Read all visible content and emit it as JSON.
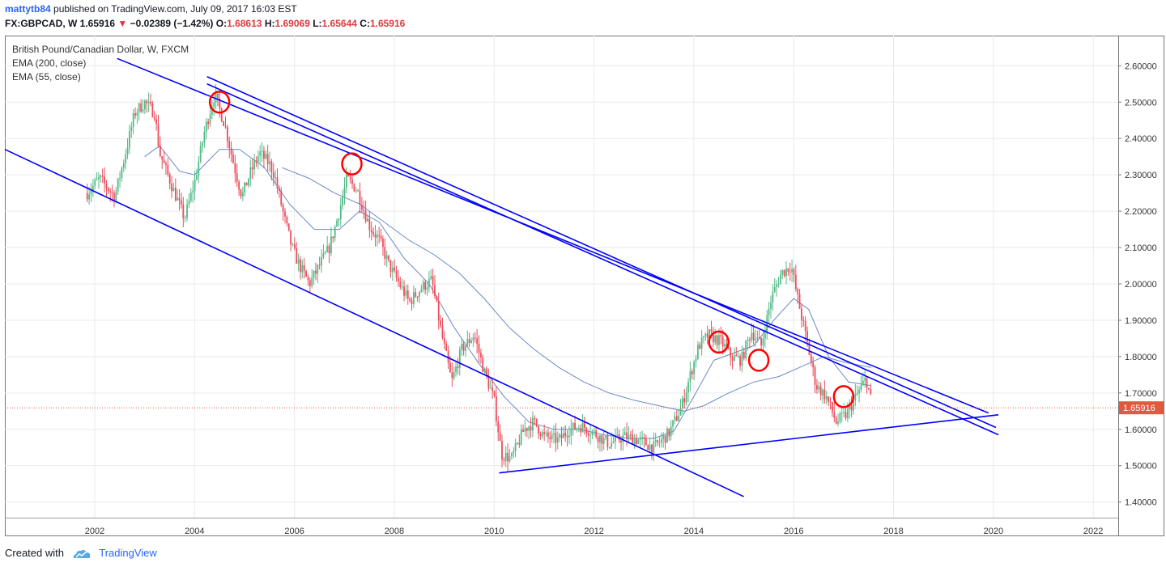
{
  "header": {
    "author": "mattytb84",
    "published_text": "published on TradingView.com, July 09, 2017 16:03 EST",
    "symbol": "FX:GBPCAD, W",
    "last": "1.65916",
    "change": "−0.02389 (−1.42%)",
    "open_label": "O:",
    "open": "1.68613",
    "high_label": "H:",
    "high": "1.69069",
    "low_label": "L:",
    "low": "1.65644",
    "close_label": "C:",
    "close": "1.65916"
  },
  "legend": {
    "title": "British Pound/Canadian Dollar, W, FXCM",
    "ema200": "EMA (200, close)",
    "ema55": "EMA (55, close)"
  },
  "footer": {
    "created_with": "Created with",
    "brand": "TradingView"
  },
  "chart_data": {
    "type": "candlestick",
    "xlim": [
      2000.2,
      2022.5
    ],
    "ylim": [
      1.357,
      2.683
    ],
    "x_ticks": [
      "2002",
      "2004",
      "2006",
      "2008",
      "2010",
      "2012",
      "2014",
      "2016",
      "2018",
      "2020",
      "2022"
    ],
    "y_ticks": [
      "1.40000",
      "1.50000",
      "1.60000",
      "1.70000",
      "1.80000",
      "1.90000",
      "2.00000",
      "2.10000",
      "2.20000",
      "2.30000",
      "2.40000",
      "2.50000",
      "2.60000"
    ],
    "last_price": 1.65916,
    "last_price_label": "1.65916",
    "colors": {
      "up": "#53b987",
      "down": "#eb4d5c",
      "ema": "#6a89c5",
      "trendline": "#0000ff",
      "circle": "#ff0000",
      "last_price": "#e05a3c"
    },
    "price_path": [
      [
        2001.85,
        2.25
      ],
      [
        2002.1,
        2.29
      ],
      [
        2002.4,
        2.24
      ],
      [
        2002.6,
        2.35
      ],
      [
        2002.8,
        2.47
      ],
      [
        2003.0,
        2.5
      ],
      [
        2003.2,
        2.47
      ],
      [
        2003.3,
        2.36
      ],
      [
        2003.6,
        2.25
      ],
      [
        2003.8,
        2.18
      ],
      [
        2004.0,
        2.28
      ],
      [
        2004.2,
        2.42
      ],
      [
        2004.4,
        2.52
      ],
      [
        2004.6,
        2.44
      ],
      [
        2004.8,
        2.32
      ],
      [
        2004.95,
        2.24
      ],
      [
        2005.1,
        2.3
      ],
      [
        2005.3,
        2.36
      ],
      [
        2005.5,
        2.33
      ],
      [
        2005.6,
        2.3
      ],
      [
        2005.8,
        2.18
      ],
      [
        2005.95,
        2.1
      ],
      [
        2006.1,
        2.05
      ],
      [
        2006.3,
        2.0
      ],
      [
        2006.5,
        2.05
      ],
      [
        2006.7,
        2.1
      ],
      [
        2006.9,
        2.2
      ],
      [
        2007.05,
        2.29
      ],
      [
        2007.25,
        2.26
      ],
      [
        2007.5,
        2.16
      ],
      [
        2007.7,
        2.12
      ],
      [
        2007.9,
        2.05
      ],
      [
        2008.1,
        2.0
      ],
      [
        2008.3,
        1.95
      ],
      [
        2008.55,
        1.99
      ],
      [
        2008.75,
        2.01
      ],
      [
        2008.95,
        1.86
      ],
      [
        2009.15,
        1.73
      ],
      [
        2009.35,
        1.82
      ],
      [
        2009.6,
        1.86
      ],
      [
        2009.8,
        1.76
      ],
      [
        2010.0,
        1.68
      ],
      [
        2010.15,
        1.53
      ],
      [
        2010.35,
        1.52
      ],
      [
        2010.6,
        1.6
      ],
      [
        2010.8,
        1.62
      ],
      [
        2011.0,
        1.58
      ],
      [
        2011.3,
        1.57
      ],
      [
        2011.5,
        1.6
      ],
      [
        2011.75,
        1.61
      ],
      [
        2012.0,
        1.59
      ],
      [
        2012.3,
        1.56
      ],
      [
        2012.6,
        1.58
      ],
      [
        2012.9,
        1.57
      ],
      [
        2013.2,
        1.55
      ],
      [
        2013.5,
        1.59
      ],
      [
        2013.75,
        1.66
      ],
      [
        2013.95,
        1.76
      ],
      [
        2014.1,
        1.83
      ],
      [
        2014.3,
        1.86
      ],
      [
        2014.55,
        1.84
      ],
      [
        2014.75,
        1.8
      ],
      [
        2014.95,
        1.79
      ],
      [
        2015.15,
        1.87
      ],
      [
        2015.35,
        1.83
      ],
      [
        2015.55,
        1.96
      ],
      [
        2015.75,
        2.03
      ],
      [
        2015.95,
        2.05
      ],
      [
        2016.05,
        1.98
      ],
      [
        2016.25,
        1.85
      ],
      [
        2016.45,
        1.72
      ],
      [
        2016.65,
        1.69
      ],
      [
        2016.85,
        1.62
      ],
      [
        2017.05,
        1.64
      ],
      [
        2017.25,
        1.69
      ],
      [
        2017.45,
        1.74
      ],
      [
        2017.55,
        1.68
      ]
    ],
    "ema200": [
      [
        2005.75,
        2.32
      ],
      [
        2006.3,
        2.29
      ],
      [
        2006.8,
        2.25
      ],
      [
        2007.3,
        2.22
      ],
      [
        2007.8,
        2.17
      ],
      [
        2008.3,
        2.12
      ],
      [
        2008.8,
        2.08
      ],
      [
        2009.3,
        2.03
      ],
      [
        2009.8,
        1.96
      ],
      [
        2010.3,
        1.88
      ],
      [
        2010.8,
        1.82
      ],
      [
        2011.3,
        1.77
      ],
      [
        2011.8,
        1.73
      ],
      [
        2012.3,
        1.7
      ],
      [
        2012.8,
        1.68
      ],
      [
        2013.3,
        1.665
      ],
      [
        2013.8,
        1.65
      ],
      [
        2014.2,
        1.665
      ],
      [
        2014.7,
        1.7
      ],
      [
        2015.2,
        1.73
      ],
      [
        2015.7,
        1.745
      ],
      [
        2016.2,
        1.775
      ],
      [
        2016.6,
        1.8
      ],
      [
        2017.0,
        1.785
      ],
      [
        2017.55,
        1.77
      ]
    ],
    "ema55": [
      [
        2003.0,
        2.35
      ],
      [
        2003.3,
        2.38
      ],
      [
        2003.7,
        2.31
      ],
      [
        2004.0,
        2.3
      ],
      [
        2004.5,
        2.37
      ],
      [
        2004.9,
        2.37
      ],
      [
        2005.4,
        2.32
      ],
      [
        2005.9,
        2.22
      ],
      [
        2006.4,
        2.15
      ],
      [
        2006.9,
        2.15
      ],
      [
        2007.3,
        2.2
      ],
      [
        2007.7,
        2.17
      ],
      [
        2008.2,
        2.07
      ],
      [
        2008.7,
        2.0
      ],
      [
        2009.2,
        1.88
      ],
      [
        2009.7,
        1.78
      ],
      [
        2010.2,
        1.69
      ],
      [
        2010.7,
        1.62
      ],
      [
        2011.2,
        1.6
      ],
      [
        2011.7,
        1.6
      ],
      [
        2012.2,
        1.585
      ],
      [
        2012.7,
        1.575
      ],
      [
        2013.2,
        1.575
      ],
      [
        2013.6,
        1.595
      ],
      [
        2014.0,
        1.69
      ],
      [
        2014.4,
        1.79
      ],
      [
        2014.8,
        1.81
      ],
      [
        2015.2,
        1.83
      ],
      [
        2015.6,
        1.9
      ],
      [
        2016.0,
        1.96
      ],
      [
        2016.3,
        1.93
      ],
      [
        2016.7,
        1.8
      ],
      [
        2017.1,
        1.73
      ],
      [
        2017.55,
        1.72
      ]
    ],
    "trendlines": [
      [
        [
          2000.2,
          2.37
        ],
        [
          2015.0,
          1.415
        ]
      ],
      [
        [
          2010.1,
          1.48
        ],
        [
          2020.1,
          1.64
        ]
      ],
      [
        [
          2002.45,
          2.62
        ],
        [
          2019.9,
          1.645
        ]
      ],
      [
        [
          2004.25,
          2.57
        ],
        [
          2020.05,
          1.605
        ]
      ],
      [
        [
          2004.25,
          2.55
        ],
        [
          2020.1,
          1.585
        ]
      ]
    ],
    "circles": [
      [
        2004.5,
        2.5
      ],
      [
        2007.15,
        2.33
      ],
      [
        2014.5,
        1.84
      ],
      [
        2015.3,
        1.79
      ],
      [
        2017.0,
        1.69
      ]
    ]
  }
}
